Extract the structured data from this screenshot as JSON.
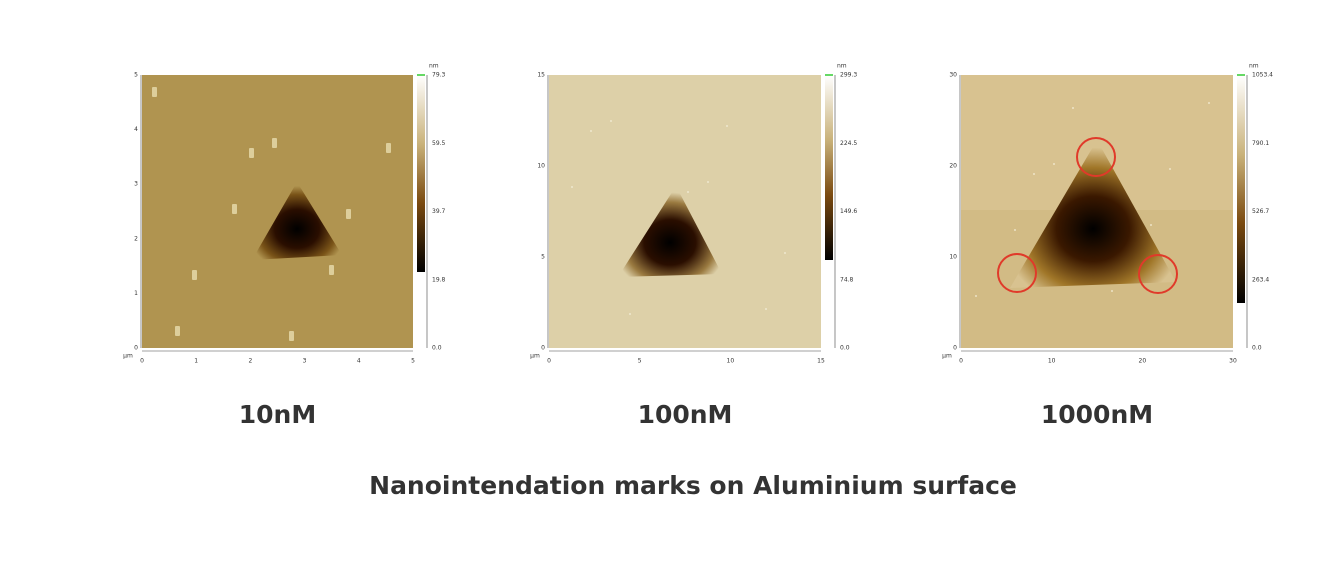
{
  "panels": [
    {
      "caption": "10nM",
      "x_unit": "μm",
      "x_ticks": [
        "0",
        "1",
        "2",
        "3",
        "4",
        "5"
      ],
      "y_ticks": [
        "0",
        "1",
        "2",
        "3",
        "4",
        "5"
      ],
      "colorbar_unit": "nm",
      "colorbar_ticks": [
        "0.0",
        "19.8",
        "39.7",
        "59.5",
        "79.3"
      ]
    },
    {
      "caption": "100nM",
      "x_unit": "μm",
      "x_ticks": [
        "0",
        "5",
        "10",
        "15"
      ],
      "y_ticks": [
        "0",
        "5",
        "10",
        "15"
      ],
      "colorbar_unit": "nm",
      "colorbar_ticks": [
        "0.0",
        "74.8",
        "149.6",
        "224.5",
        "299.3"
      ]
    },
    {
      "caption": "1000nM",
      "x_unit": "μm",
      "x_ticks": [
        "0",
        "10",
        "20",
        "30"
      ],
      "y_ticks": [
        "0",
        "10",
        "20",
        "30"
      ],
      "colorbar_unit": "nm",
      "colorbar_ticks": [
        "0.0",
        "263.4",
        "526.7",
        "790.1",
        "1053.4"
      ]
    }
  ],
  "caption": "Nanointendation marks on Aluminium surface"
}
